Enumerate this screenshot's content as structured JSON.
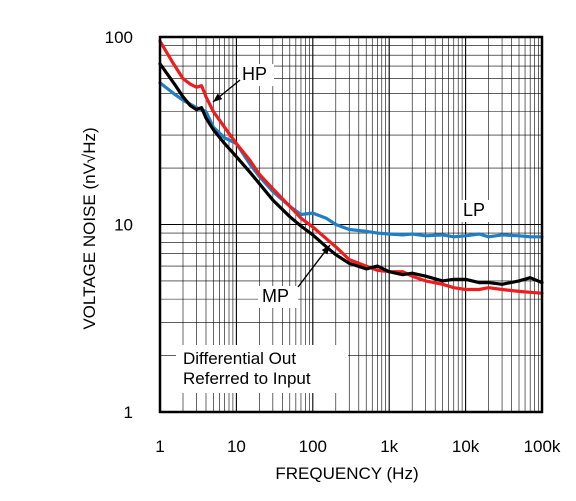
{
  "chart_data": {
    "type": "line",
    "xlabel": "FREQUENCY (Hz)",
    "ylabel": "VOLTAGE NOISE (nV√Hz)",
    "x_scale": "log",
    "y_scale": "log",
    "xlim": [
      1,
      100000
    ],
    "ylim": [
      1,
      100
    ],
    "grid": true,
    "x_ticks": [
      {
        "value": 1,
        "label": "1"
      },
      {
        "value": 10,
        "label": "10"
      },
      {
        "value": 100,
        "label": "100"
      },
      {
        "value": 1000,
        "label": "1k"
      },
      {
        "value": 10000,
        "label": "10k"
      },
      {
        "value": 100000,
        "label": "100k"
      }
    ],
    "y_ticks": [
      {
        "value": 1,
        "label": "1"
      },
      {
        "value": 10,
        "label": "10"
      },
      {
        "value": 100,
        "label": "100"
      }
    ],
    "annotation": {
      "lines": [
        "Differential Out",
        "Referred to Input"
      ]
    },
    "series": [
      {
        "name": "HP",
        "color": "#ee1c1c",
        "x": [
          1,
          1.5,
          2,
          2.5,
          3,
          3.5,
          4,
          5,
          7,
          10,
          15,
          20,
          30,
          50,
          70,
          100,
          150,
          200,
          300,
          500,
          700,
          1000,
          1500,
          2000,
          3000,
          5000,
          7000,
          10000,
          15000,
          20000,
          30000,
          50000,
          70000,
          100000
        ],
        "y": [
          95,
          72,
          60,
          56,
          54,
          55,
          48,
          40,
          33,
          27,
          22,
          18.5,
          15.5,
          12.5,
          10.8,
          9.7,
          8.4,
          7.6,
          6.5,
          6.0,
          5.7,
          5.6,
          5.6,
          5.3,
          5.0,
          4.8,
          4.6,
          4.5,
          4.5,
          4.6,
          4.5,
          4.4,
          4.35,
          4.3
        ]
      },
      {
        "name": "MP",
        "color": "#000000",
        "x": [
          1,
          1.3,
          1.6,
          2,
          2.5,
          3,
          3.5,
          4,
          5,
          7,
          10,
          15,
          20,
          30,
          50,
          70,
          100,
          150,
          200,
          300,
          500,
          700,
          1000,
          1500,
          2000,
          3000,
          5000,
          7000,
          10000,
          15000,
          20000,
          30000,
          50000,
          70000,
          100000
        ],
        "y": [
          72,
          62,
          55,
          48,
          43,
          41,
          42,
          37,
          32,
          27,
          23,
          19,
          16.5,
          13.5,
          11.0,
          9.8,
          8.8,
          7.6,
          6.9,
          6.2,
          5.8,
          6.0,
          5.6,
          5.4,
          5.5,
          5.3,
          5.0,
          5.1,
          5.1,
          4.9,
          4.9,
          4.8,
          5.0,
          5.2,
          4.9
        ]
      },
      {
        "name": "LP",
        "color": "#1f7fc4",
        "x": [
          1,
          1.5,
          2,
          3,
          4,
          5,
          7,
          10,
          15,
          20,
          30,
          50,
          70,
          100,
          150,
          200,
          300,
          500,
          700,
          1000,
          1500,
          2000,
          3000,
          5000,
          7000,
          10000,
          15000,
          20000,
          30000,
          50000,
          70000,
          100000
        ],
        "y": [
          57,
          50,
          46,
          42,
          40,
          33,
          29,
          27,
          21,
          18,
          15,
          12.5,
          11.3,
          11.5,
          10.8,
          10.0,
          9.4,
          9.2,
          9.0,
          8.9,
          8.8,
          8.9,
          8.7,
          8.8,
          8.6,
          8.7,
          8.9,
          8.6,
          8.8,
          8.7,
          8.6,
          8.6
        ]
      }
    ]
  }
}
